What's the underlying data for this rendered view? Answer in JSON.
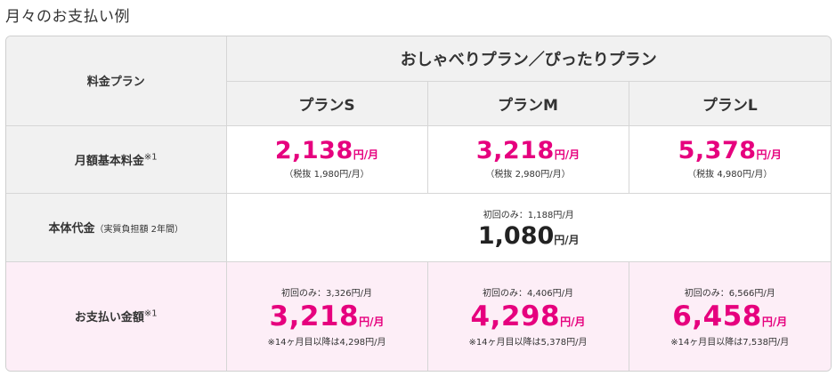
{
  "page_title": "月々のお支払い例",
  "table": {
    "col_header_label": "料金プラン",
    "group_title": "おしゃべりプラン／ぴったりプラン",
    "plans": [
      "プランS",
      "プランM",
      "プランL"
    ],
    "unit_per_month": "円/月",
    "monthly_basic": {
      "label": "月額基本料金",
      "note": "※1",
      "prices": [
        "2,138",
        "3,218",
        "5,378"
      ],
      "tax_excluded": [
        "（税抜 1,980円/月）",
        "（税抜 2,980円/月）",
        "（税抜 4,980円/月）"
      ]
    },
    "device_cost": {
      "label": "本体代金",
      "label_sub": "（実質負担額 2年間）",
      "first_time": "初回のみ：1,188円/月",
      "price": "1,080"
    },
    "payment": {
      "label": "お支払い金額",
      "note": "※1",
      "first_time": [
        "初回のみ：3,326円/月",
        "初回のみ：4,406円/月",
        "初回のみ：6,566円/月"
      ],
      "prices": [
        "3,218",
        "4,298",
        "6,458"
      ],
      "after": [
        "※14ヶ月目以降は4,298円/月",
        "※14ヶ月目以降は5,378円/月",
        "※14ヶ月目以降は7,538円/月"
      ]
    }
  },
  "colors": {
    "accent": "#e6007e",
    "header_bg": "#f1f1f1",
    "pink_row_bg": "#fdeef7"
  }
}
